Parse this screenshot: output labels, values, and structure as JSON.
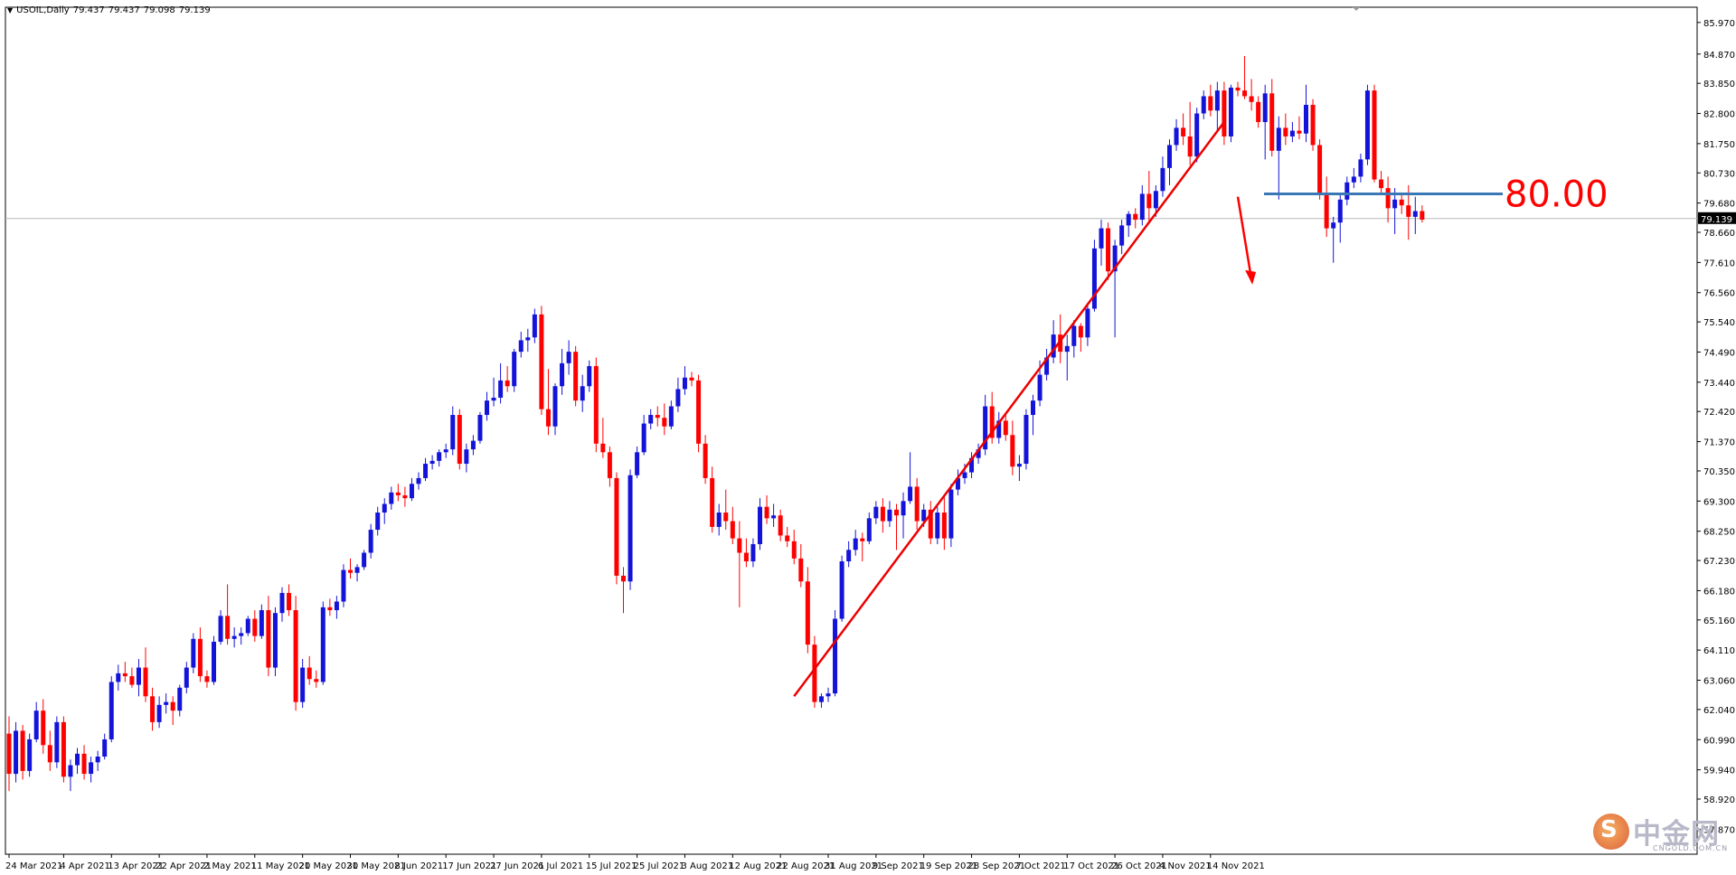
{
  "window": {
    "symbol_label": "USOIL,Daily",
    "ohlc": [
      "79.437",
      "79.437",
      "79.098",
      "79.139"
    ]
  },
  "annotation": {
    "level_label": "80.00"
  },
  "watermark": {
    "cn": "中金网",
    "en": "CNGOLD.COM.CN",
    "logo_glyph": "S"
  },
  "colors": {
    "bull": "#1313d9",
    "bear": "#ff0000",
    "level_line": "#3a78b5",
    "trend_line": "#ee0000",
    "price_line": "#b8b8b8"
  },
  "chart_data": {
    "type": "candlestick",
    "title": "USOIL,Daily",
    "current_price": 79.139,
    "current_price_label": "79.139",
    "ylim": [
      57.0,
      86.5
    ],
    "y_ticks": [
      "85.970",
      "84.870",
      "83.850",
      "82.800",
      "81.750",
      "80.730",
      "79.680",
      "78.660",
      "77.610",
      "76.560",
      "75.540",
      "74.490",
      "73.440",
      "72.420",
      "71.370",
      "70.350",
      "69.300",
      "68.250",
      "67.230",
      "66.180",
      "65.160",
      "64.110",
      "63.060",
      "62.040",
      "60.990",
      "59.940",
      "58.920",
      "57.870"
    ],
    "x_labels": [
      {
        "label": "24 Mar 2021",
        "i": 0
      },
      {
        "label": "4 Apr 2021",
        "i": 8
      },
      {
        "label": "13 Apr 2021",
        "i": 15
      },
      {
        "label": "22 Apr 2021",
        "i": 22
      },
      {
        "label": "2 May 2021",
        "i": 29
      },
      {
        "label": "11 May 2021",
        "i": 36
      },
      {
        "label": "20 May 2021",
        "i": 43
      },
      {
        "label": "30 May 2021",
        "i": 50
      },
      {
        "label": "8 Jun 2021",
        "i": 57
      },
      {
        "label": "17 Jun 2021",
        "i": 64
      },
      {
        "label": "27 Jun 2021",
        "i": 71
      },
      {
        "label": "6 Jul 2021",
        "i": 78
      },
      {
        "label": "15 Jul 2021",
        "i": 85
      },
      {
        "label": "25 Jul 2021",
        "i": 92
      },
      {
        "label": "3 Aug 2021",
        "i": 99
      },
      {
        "label": "12 Aug 2021",
        "i": 106
      },
      {
        "label": "22 Aug 2021",
        "i": 113
      },
      {
        "label": "31 Aug 2021",
        "i": 120
      },
      {
        "label": "9 Sep 2021",
        "i": 127
      },
      {
        "label": "19 Sep 2021",
        "i": 134
      },
      {
        "label": "28 Sep 2021",
        "i": 141
      },
      {
        "label": "7 Oct 2021",
        "i": 148
      },
      {
        "label": "17 Oct 2021",
        "i": 155
      },
      {
        "label": "26 Oct 2021",
        "i": 162
      },
      {
        "label": "4 Nov 2021",
        "i": 169
      },
      {
        "label": "14 Nov 2021",
        "i": 176
      }
    ],
    "candles": [
      [
        61.2,
        61.8,
        59.2,
        59.8
      ],
      [
        59.8,
        61.6,
        59.5,
        61.3
      ],
      [
        61.3,
        61.5,
        59.6,
        59.9
      ],
      [
        59.9,
        61.2,
        59.7,
        61.0
      ],
      [
        61.0,
        62.3,
        60.9,
        62.0
      ],
      [
        62.0,
        62.4,
        60.5,
        60.8
      ],
      [
        60.8,
        61.3,
        59.9,
        60.2
      ],
      [
        60.2,
        61.8,
        60.0,
        61.6
      ],
      [
        61.6,
        61.8,
        59.5,
        59.7
      ],
      [
        59.7,
        60.3,
        59.2,
        60.1
      ],
      [
        60.1,
        60.7,
        59.8,
        60.5
      ],
      [
        60.5,
        60.8,
        59.6,
        59.8
      ],
      [
        59.8,
        60.4,
        59.5,
        60.2
      ],
      [
        60.2,
        60.6,
        59.9,
        60.4
      ],
      [
        60.4,
        61.2,
        60.3,
        61.0
      ],
      [
        61.0,
        63.2,
        60.9,
        63.0
      ],
      [
        63.0,
        63.6,
        62.7,
        63.3
      ],
      [
        63.3,
        63.7,
        63.0,
        63.2
      ],
      [
        63.2,
        63.5,
        62.8,
        62.9
      ],
      [
        62.9,
        63.8,
        62.5,
        63.5
      ],
      [
        63.5,
        64.2,
        62.3,
        62.5
      ],
      [
        62.5,
        62.8,
        61.3,
        61.6
      ],
      [
        61.6,
        62.5,
        61.4,
        62.2
      ],
      [
        62.2,
        62.6,
        61.9,
        62.3
      ],
      [
        62.3,
        62.5,
        61.5,
        62.0
      ],
      [
        62.0,
        62.9,
        61.8,
        62.8
      ],
      [
        62.8,
        63.7,
        62.6,
        63.5
      ],
      [
        63.5,
        64.7,
        63.3,
        64.5
      ],
      [
        64.5,
        64.9,
        63.0,
        63.2
      ],
      [
        63.2,
        63.4,
        62.8,
        63.0
      ],
      [
        63.0,
        64.6,
        62.9,
        64.4
      ],
      [
        64.4,
        65.5,
        64.3,
        65.3
      ],
      [
        65.3,
        66.4,
        64.3,
        64.5
      ],
      [
        64.5,
        64.9,
        64.2,
        64.6
      ],
      [
        64.6,
        64.9,
        64.3,
        64.7
      ],
      [
        64.7,
        65.3,
        64.6,
        65.2
      ],
      [
        65.2,
        65.5,
        64.4,
        64.6
      ],
      [
        64.6,
        65.7,
        64.5,
        65.5
      ],
      [
        65.5,
        66.0,
        63.2,
        63.5
      ],
      [
        63.5,
        65.6,
        63.2,
        65.4
      ],
      [
        65.4,
        66.3,
        65.1,
        66.1
      ],
      [
        66.1,
        66.4,
        65.3,
        65.5
      ],
      [
        65.5,
        66.0,
        62.0,
        62.3
      ],
      [
        62.3,
        63.8,
        62.1,
        63.5
      ],
      [
        63.5,
        63.9,
        62.9,
        63.1
      ],
      [
        63.1,
        63.4,
        62.8,
        63.0
      ],
      [
        63.0,
        65.8,
        62.9,
        65.6
      ],
      [
        65.6,
        65.9,
        65.3,
        65.5
      ],
      [
        65.5,
        66.0,
        65.2,
        65.8
      ],
      [
        65.8,
        67.1,
        65.6,
        66.9
      ],
      [
        66.9,
        67.3,
        66.6,
        66.8
      ],
      [
        66.8,
        67.1,
        66.5,
        67.0
      ],
      [
        67.0,
        67.6,
        66.9,
        67.5
      ],
      [
        67.5,
        68.5,
        67.3,
        68.3
      ],
      [
        68.3,
        69.1,
        68.1,
        68.9
      ],
      [
        68.9,
        69.4,
        68.5,
        69.2
      ],
      [
        69.2,
        69.8,
        69.0,
        69.6
      ],
      [
        69.6,
        69.9,
        69.3,
        69.5
      ],
      [
        69.5,
        69.8,
        69.1,
        69.4
      ],
      [
        69.4,
        70.1,
        69.3,
        69.9
      ],
      [
        69.9,
        70.3,
        69.7,
        70.1
      ],
      [
        70.1,
        70.8,
        70.0,
        70.6
      ],
      [
        70.6,
        70.9,
        70.4,
        70.7
      ],
      [
        70.7,
        71.1,
        70.5,
        71.0
      ],
      [
        71.0,
        71.3,
        70.8,
        71.1
      ],
      [
        71.1,
        72.6,
        70.9,
        72.3
      ],
      [
        72.3,
        72.5,
        70.4,
        70.6
      ],
      [
        70.6,
        71.3,
        70.3,
        71.1
      ],
      [
        71.1,
        71.6,
        70.9,
        71.4
      ],
      [
        71.4,
        72.4,
        71.3,
        72.3
      ],
      [
        72.3,
        73.1,
        72.1,
        72.8
      ],
      [
        72.8,
        73.6,
        72.6,
        72.9
      ],
      [
        72.9,
        74.1,
        72.7,
        73.5
      ],
      [
        73.5,
        74.0,
        73.1,
        73.3
      ],
      [
        73.3,
        74.6,
        73.1,
        74.5
      ],
      [
        74.5,
        75.2,
        74.3,
        74.9
      ],
      [
        74.9,
        75.3,
        74.5,
        75.0
      ],
      [
        75.0,
        76.0,
        74.8,
        75.8
      ],
      [
        75.8,
        76.1,
        72.3,
        72.5
      ],
      [
        72.5,
        73.9,
        71.6,
        71.9
      ],
      [
        71.9,
        73.4,
        71.6,
        73.3
      ],
      [
        73.3,
        74.6,
        73.0,
        74.1
      ],
      [
        74.1,
        74.9,
        73.7,
        74.5
      ],
      [
        74.5,
        74.7,
        72.6,
        72.8
      ],
      [
        72.8,
        73.7,
        72.4,
        73.3
      ],
      [
        73.3,
        74.2,
        73.1,
        74.0
      ],
      [
        74.0,
        74.3,
        71.0,
        71.3
      ],
      [
        71.3,
        72.2,
        70.8,
        71.0
      ],
      [
        71.0,
        71.2,
        69.8,
        70.1
      ],
      [
        70.1,
        70.3,
        66.4,
        66.7
      ],
      [
        66.7,
        67.0,
        65.4,
        66.5
      ],
      [
        66.5,
        70.4,
        66.2,
        70.2
      ],
      [
        70.2,
        71.2,
        70.1,
        71.0
      ],
      [
        71.0,
        72.3,
        70.9,
        72.0
      ],
      [
        72.0,
        72.5,
        71.8,
        72.3
      ],
      [
        72.3,
        72.6,
        71.9,
        72.2
      ],
      [
        72.2,
        72.7,
        71.6,
        71.9
      ],
      [
        71.9,
        72.8,
        71.8,
        72.6
      ],
      [
        72.6,
        73.6,
        72.4,
        73.2
      ],
      [
        73.2,
        74.0,
        73.0,
        73.6
      ],
      [
        73.6,
        73.8,
        73.3,
        73.5
      ],
      [
        73.5,
        73.7,
        71.0,
        71.3
      ],
      [
        71.3,
        71.6,
        69.9,
        70.1
      ],
      [
        70.1,
        70.5,
        68.2,
        68.4
      ],
      [
        68.4,
        69.2,
        68.1,
        68.9
      ],
      [
        68.9,
        69.7,
        68.3,
        68.6
      ],
      [
        68.6,
        69.1,
        67.8,
        68.0
      ],
      [
        68.0,
        68.6,
        65.6,
        67.5
      ],
      [
        67.5,
        68.0,
        67.0,
        67.2
      ],
      [
        67.2,
        68.0,
        67.0,
        67.8
      ],
      [
        67.8,
        69.4,
        67.6,
        69.1
      ],
      [
        69.1,
        69.5,
        68.5,
        68.7
      ],
      [
        68.7,
        69.2,
        68.4,
        68.8
      ],
      [
        68.8,
        69.0,
        67.9,
        68.1
      ],
      [
        68.1,
        68.4,
        67.7,
        67.9
      ],
      [
        67.9,
        68.3,
        67.1,
        67.3
      ],
      [
        67.3,
        67.8,
        66.3,
        66.5
      ],
      [
        66.5,
        67.0,
        64.0,
        64.3
      ],
      [
        64.3,
        64.6,
        62.1,
        62.3
      ],
      [
        62.3,
        62.6,
        62.1,
        62.5
      ],
      [
        62.5,
        62.8,
        62.3,
        62.6
      ],
      [
        62.6,
        65.5,
        62.5,
        65.2
      ],
      [
        65.2,
        67.4,
        65.1,
        67.2
      ],
      [
        67.2,
        67.9,
        67.0,
        67.6
      ],
      [
        67.6,
        68.3,
        67.4,
        68.0
      ],
      [
        68.0,
        68.2,
        67.2,
        67.9
      ],
      [
        67.9,
        68.9,
        67.8,
        68.7
      ],
      [
        68.7,
        69.3,
        68.5,
        69.1
      ],
      [
        69.1,
        69.4,
        68.2,
        68.6
      ],
      [
        68.6,
        69.3,
        68.4,
        69.0
      ],
      [
        69.0,
        69.2,
        67.6,
        68.8
      ],
      [
        68.8,
        69.6,
        68.0,
        69.3
      ],
      [
        69.3,
        71.0,
        69.2,
        69.8
      ],
      [
        69.8,
        70.1,
        68.3,
        68.6
      ],
      [
        68.6,
        69.2,
        68.4,
        69.0
      ],
      [
        69.0,
        69.3,
        67.8,
        68.0
      ],
      [
        68.0,
        69.1,
        67.8,
        68.9
      ],
      [
        68.9,
        69.5,
        67.6,
        68.0
      ],
      [
        68.0,
        69.9,
        67.7,
        69.7
      ],
      [
        69.7,
        70.4,
        69.5,
        70.1
      ],
      [
        70.1,
        70.6,
        69.9,
        70.3
      ],
      [
        70.3,
        71.0,
        70.1,
        70.8
      ],
      [
        70.8,
        71.3,
        70.6,
        71.1
      ],
      [
        71.1,
        73.0,
        70.9,
        72.6
      ],
      [
        72.6,
        73.1,
        71.3,
        71.5
      ],
      [
        71.5,
        72.4,
        71.3,
        72.1
      ],
      [
        72.1,
        72.3,
        71.4,
        71.6
      ],
      [
        71.6,
        72.1,
        70.2,
        70.5
      ],
      [
        70.5,
        70.9,
        70.0,
        70.6
      ],
      [
        70.6,
        72.5,
        70.4,
        72.3
      ],
      [
        72.3,
        73.0,
        71.6,
        72.8
      ],
      [
        72.8,
        74.2,
        72.6,
        73.7
      ],
      [
        73.7,
        74.6,
        73.5,
        74.3
      ],
      [
        74.3,
        75.6,
        74.1,
        75.1
      ],
      [
        75.1,
        75.8,
        74.1,
        74.5
      ],
      [
        74.5,
        75.1,
        73.5,
        74.7
      ],
      [
        74.7,
        75.6,
        74.3,
        75.4
      ],
      [
        75.4,
        75.5,
        74.5,
        75.0
      ],
      [
        75.0,
        76.2,
        74.7,
        76.0
      ],
      [
        76.0,
        78.4,
        75.9,
        78.1
      ],
      [
        78.1,
        79.1,
        77.5,
        78.8
      ],
      [
        78.8,
        79.0,
        77.0,
        77.3
      ],
      [
        77.3,
        78.4,
        75.0,
        78.2
      ],
      [
        78.2,
        79.1,
        77.9,
        78.9
      ],
      [
        78.9,
        79.4,
        78.5,
        79.3
      ],
      [
        79.3,
        79.5,
        78.8,
        79.1
      ],
      [
        79.1,
        80.3,
        78.9,
        80.0
      ],
      [
        80.0,
        80.8,
        79.0,
        79.5
      ],
      [
        79.5,
        80.3,
        79.2,
        80.1
      ],
      [
        80.1,
        81.3,
        79.9,
        80.9
      ],
      [
        80.9,
        81.9,
        80.3,
        81.7
      ],
      [
        81.7,
        82.6,
        81.5,
        82.3
      ],
      [
        82.3,
        82.8,
        81.7,
        82.0
      ],
      [
        82.0,
        83.2,
        81.0,
        81.3
      ],
      [
        81.3,
        83.0,
        81.1,
        82.8
      ],
      [
        82.8,
        83.6,
        82.6,
        83.4
      ],
      [
        83.4,
        83.8,
        82.7,
        82.9
      ],
      [
        82.9,
        83.9,
        82.2,
        83.6
      ],
      [
        83.6,
        83.9,
        81.7,
        82.0
      ],
      [
        82.0,
        83.8,
        81.8,
        83.7
      ],
      [
        83.7,
        83.9,
        83.4,
        83.6
      ],
      [
        83.6,
        84.8,
        83.3,
        83.4
      ],
      [
        83.4,
        84.0,
        82.9,
        83.2
      ],
      [
        83.2,
        83.4,
        82.3,
        82.5
      ],
      [
        82.5,
        83.8,
        81.2,
        83.5
      ],
      [
        83.5,
        84.0,
        81.3,
        81.5
      ],
      [
        81.5,
        82.7,
        79.8,
        82.3
      ],
      [
        82.3,
        82.8,
        81.7,
        82.0
      ],
      [
        82.0,
        82.5,
        81.8,
        82.2
      ],
      [
        82.2,
        82.7,
        81.9,
        82.1
      ],
      [
        82.1,
        83.8,
        81.8,
        83.1
      ],
      [
        83.1,
        83.3,
        81.5,
        81.7
      ],
      [
        81.7,
        81.9,
        79.8,
        80.0
      ],
      [
        80.0,
        80.6,
        78.5,
        78.8
      ],
      [
        78.8,
        79.2,
        77.6,
        79.0
      ],
      [
        79.0,
        80.0,
        78.3,
        79.8
      ],
      [
        79.8,
        80.6,
        79.6,
        80.4
      ],
      [
        80.4,
        80.9,
        80.2,
        80.6
      ],
      [
        80.6,
        81.4,
        80.4,
        81.2
      ],
      [
        81.2,
        83.8,
        81.0,
        83.6
      ],
      [
        83.6,
        83.8,
        80.4,
        80.5
      ],
      [
        80.5,
        80.8,
        80.0,
        80.2
      ],
      [
        80.2,
        80.6,
        79.0,
        79.5
      ],
      [
        79.5,
        80.2,
        78.6,
        79.8
      ],
      [
        79.8,
        80.0,
        79.3,
        79.6
      ],
      [
        79.6,
        80.3,
        78.4,
        79.2
      ],
      [
        79.2,
        79.9,
        78.6,
        79.4
      ],
      [
        79.4,
        79.6,
        79.0,
        79.1
      ]
    ],
    "annotations": {
      "support_level": 80.0,
      "trendline": {
        "from_i": 115,
        "from_y": 62.5,
        "to_i": 178,
        "to_y": 82.5
      },
      "arrow": {
        "from_i": 180,
        "from_y": 79.9,
        "to_i": 182,
        "to_y": 76.9
      }
    },
    "grid": false
  }
}
